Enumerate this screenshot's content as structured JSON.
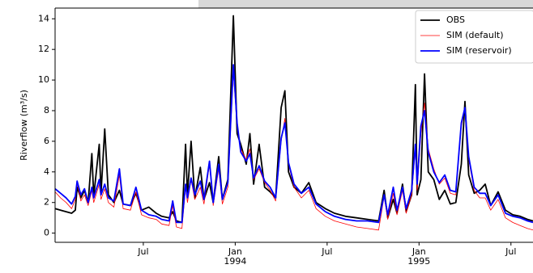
{
  "chart_data": {
    "type": "line",
    "y_label": "Riverflow (m³/s)",
    "x": [
      1993.02,
      1993.05,
      1993.08,
      1993.11,
      1993.13,
      1993.14,
      1993.16,
      1993.18,
      1993.2,
      1993.22,
      1993.23,
      1993.26,
      1993.27,
      1993.29,
      1993.31,
      1993.34,
      1993.37,
      1993.39,
      1993.43,
      1993.46,
      1993.49,
      1993.53,
      1993.57,
      1993.6,
      1993.64,
      1993.66,
      1993.68,
      1993.71,
      1993.73,
      1993.74,
      1993.76,
      1993.78,
      1993.81,
      1993.83,
      1993.86,
      1993.88,
      1993.91,
      1993.93,
      1993.96,
      1993.99,
      1994.01,
      1994.03,
      1994.06,
      1994.08,
      1994.1,
      1994.13,
      1994.16,
      1994.19,
      1994.22,
      1994.25,
      1994.27,
      1994.29,
      1994.32,
      1994.36,
      1994.4,
      1994.44,
      1994.49,
      1994.54,
      1994.6,
      1994.66,
      1994.72,
      1994.78,
      1994.81,
      1994.83,
      1994.86,
      1994.88,
      1994.91,
      1994.93,
      1994.96,
      1994.98,
      1994.99,
      1995.01,
      1995.03,
      1995.05,
      1995.08,
      1995.11,
      1995.14,
      1995.17,
      1995.2,
      1995.23,
      1995.25,
      1995.27,
      1995.3,
      1995.33,
      1995.36,
      1995.39,
      1995.43,
      1995.47,
      1995.51,
      1995.55,
      1995.59,
      1995.62
    ],
    "series": [
      {
        "name": "OBS",
        "color": "#000000",
        "width": 1.8,
        "values": [
          1.6,
          1.5,
          1.4,
          1.3,
          1.5,
          3.0,
          2.3,
          2.8,
          2.0,
          5.2,
          2.4,
          5.8,
          2.6,
          6.8,
          2.5,
          2.0,
          2.8,
          1.9,
          1.8,
          2.6,
          1.5,
          1.7,
          1.3,
          1.1,
          1.0,
          1.4,
          0.8,
          0.7,
          5.8,
          2.5,
          6.0,
          2.3,
          4.3,
          2.2,
          3.3,
          2.0,
          5.0,
          2.2,
          3.5,
          14.2,
          6.5,
          5.8,
          4.5,
          6.5,
          3.2,
          5.8,
          3.0,
          2.7,
          2.3,
          8.2,
          9.3,
          4.0,
          3.0,
          2.6,
          3.3,
          2.0,
          1.6,
          1.3,
          1.1,
          1.0,
          0.9,
          0.8,
          2.8,
          1.0,
          2.2,
          1.3,
          3.2,
          1.4,
          2.5,
          9.7,
          2.5,
          3.5,
          10.4,
          4.0,
          3.5,
          2.2,
          2.8,
          1.9,
          2.0,
          4.5,
          8.6,
          3.8,
          2.6,
          2.8,
          3.2,
          1.8,
          2.7,
          1.5,
          1.2,
          1.1,
          0.9,
          0.8
        ]
      },
      {
        "name": "SIM (default)",
        "color": "#ff0000",
        "width": 0.8,
        "values": [
          2.7,
          2.3,
          2.0,
          1.6,
          2.2,
          3.3,
          2.1,
          2.5,
          1.8,
          2.8,
          2.0,
          3.2,
          2.2,
          2.9,
          2.0,
          1.7,
          3.8,
          1.6,
          1.5,
          2.7,
          1.2,
          1.0,
          0.9,
          0.6,
          0.5,
          1.8,
          0.4,
          0.3,
          3.0,
          2.0,
          3.5,
          2.2,
          3.0,
          1.9,
          4.5,
          1.8,
          4.2,
          1.9,
          3.0,
          10.5,
          7.0,
          5.5,
          4.8,
          5.5,
          3.5,
          4.2,
          3.3,
          2.8,
          2.1,
          6.0,
          7.5,
          4.5,
          3.0,
          2.3,
          2.8,
          1.6,
          1.1,
          0.8,
          0.6,
          0.4,
          0.3,
          0.2,
          2.4,
          0.9,
          2.6,
          1.2,
          2.8,
          1.3,
          2.5,
          5.5,
          2.8,
          6.5,
          8.5,
          5.5,
          4.2,
          3.2,
          3.6,
          2.6,
          2.5,
          7.0,
          8.2,
          4.8,
          2.8,
          2.3,
          2.3,
          1.5,
          2.2,
          1.0,
          0.7,
          0.5,
          0.3,
          0.2
        ]
      },
      {
        "name": "SIM (reservoir)",
        "color": "#0000ff",
        "width": 1.8,
        "values": [
          2.9,
          2.6,
          2.3,
          1.9,
          2.4,
          3.4,
          2.5,
          2.9,
          2.0,
          3.0,
          2.3,
          3.5,
          2.5,
          3.2,
          2.3,
          2.1,
          4.2,
          1.9,
          1.8,
          3.0,
          1.5,
          1.2,
          1.1,
          0.9,
          0.8,
          2.1,
          0.7,
          0.7,
          3.2,
          2.3,
          3.6,
          2.5,
          3.4,
          2.2,
          4.7,
          2.0,
          4.5,
          2.2,
          3.3,
          11.0,
          7.2,
          5.3,
          4.7,
          5.2,
          3.6,
          4.4,
          3.4,
          3.0,
          2.3,
          6.2,
          7.2,
          4.6,
          3.2,
          2.6,
          3.0,
          1.9,
          1.4,
          1.1,
          0.9,
          0.8,
          0.8,
          0.7,
          2.5,
          1.2,
          3.0,
          1.5,
          3.0,
          1.6,
          2.8,
          5.8,
          3.2,
          7.0,
          8.0,
          5.3,
          4.0,
          3.3,
          3.8,
          2.8,
          2.7,
          7.2,
          8.2,
          5.0,
          3.0,
          2.6,
          2.6,
          1.8,
          2.5,
          1.3,
          1.1,
          1.0,
          0.8,
          0.7
        ]
      }
    ],
    "xlim": [
      1993.02,
      1995.62
    ],
    "ylim": [
      -0.6,
      14.7
    ],
    "yticks": [
      0,
      2,
      4,
      6,
      8,
      10,
      12,
      14
    ],
    "xticks": [
      {
        "value": 1993.5,
        "label": "Jul"
      },
      {
        "value": 1994.0,
        "label": "Jan\n1994"
      },
      {
        "value": 1994.5,
        "label": "Jul"
      },
      {
        "value": 1995.0,
        "label": "Jan\n1995"
      },
      {
        "value": 1995.5,
        "label": "Jul"
      }
    ],
    "legend": "upper right"
  }
}
